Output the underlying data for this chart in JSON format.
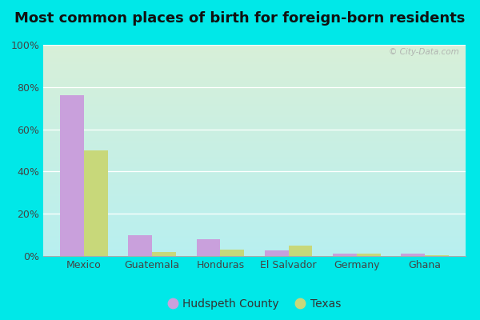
{
  "title": "Most common places of birth for foreign-born residents",
  "categories": [
    "Mexico",
    "Guatemala",
    "Honduras",
    "El Salvador",
    "Germany",
    "Ghana"
  ],
  "hudspeth_values": [
    76,
    10,
    8,
    2.5,
    1,
    1
  ],
  "texas_values": [
    50,
    2,
    3,
    5,
    1,
    0.5
  ],
  "hudspeth_color": "#c9a0dc",
  "texas_color": "#c8d87a",
  "bar_width": 0.35,
  "ylim": [
    0,
    100
  ],
  "yticks": [
    0,
    20,
    40,
    60,
    80,
    100
  ],
  "ytick_labels": [
    "0%",
    "20%",
    "40%",
    "60%",
    "80%",
    "100%"
  ],
  "legend_labels": [
    "Hudspeth County",
    "Texas"
  ],
  "outer_background": "#00e8e8",
  "title_fontsize": 13,
  "axis_fontsize": 9,
  "legend_fontsize": 10,
  "watermark_text": "© City-Data.com",
  "grid_color": "#ffffff",
  "bg_top_color": "#b8f0f0",
  "bg_bottom_color": "#d8efd8"
}
